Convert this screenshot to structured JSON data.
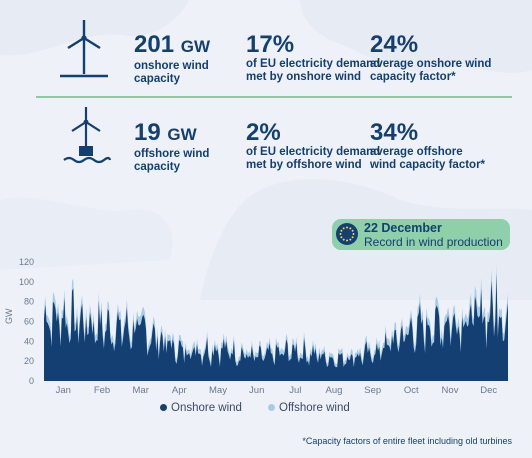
{
  "stats": {
    "onshore": [
      {
        "value": "201",
        "unit": "GW",
        "desc": [
          "onshore wind",
          "capacity"
        ]
      },
      {
        "value": "17%",
        "unit": "",
        "desc": [
          "of EU electricity demand",
          "met by onshore wind"
        ]
      },
      {
        "value": "24%",
        "unit": "",
        "desc": [
          "average onshore wind",
          "capacity factor*"
        ]
      }
    ],
    "offshore": [
      {
        "value": "19",
        "unit": "GW",
        "desc": [
          "offshore wind",
          "capacity"
        ]
      },
      {
        "value": "2%",
        "unit": "",
        "desc": [
          "of EU electricity demand",
          "met by offshore wind"
        ]
      },
      {
        "value": "34%",
        "unit": "",
        "desc": [
          "average offshore",
          "wind capacity factor*"
        ]
      }
    ]
  },
  "callout": {
    "date": "22 December",
    "text": "Record in wind production"
  },
  "footnote": "*Capacity factors of entire fleet including old turbines",
  "colors": {
    "navy": "#133f72",
    "onshore": "#133f72",
    "offshore": "#a8cbe6",
    "callout": "#8fcfa9"
  },
  "chart_data": {
    "type": "area",
    "ylabel": "GW",
    "xlabel": "",
    "ylim": [
      0,
      120
    ],
    "yticks": [
      0,
      20,
      40,
      60,
      80,
      100,
      120
    ],
    "month_labels": [
      "Jan",
      "Feb",
      "Mar",
      "Apr",
      "May",
      "Jun",
      "Jul",
      "Aug",
      "Sep",
      "Oct",
      "Nov",
      "Dec"
    ],
    "legend": [
      "Onshore wind",
      "Offshore wind"
    ],
    "legend_position": "bottom",
    "grid": false,
    "series": [
      {
        "name": "Onshore wind",
        "stacked_order": 1,
        "monthly_anchor": [
          88,
          75,
          70,
          42,
          45,
          32,
          42,
          30,
          38,
          70,
          82,
          92
        ],
        "peak": {
          "month": "Dec",
          "value": 108
        }
      },
      {
        "name": "Offshore wind",
        "stacked_order": 2,
        "monthly_anchor": [
          8,
          7,
          7,
          5,
          5,
          4,
          5,
          4,
          5,
          7,
          8,
          9
        ],
        "peak": {
          "month": "Dec",
          "value": 10
        }
      }
    ],
    "annotation": {
      "x": "22 December",
      "total": 118,
      "text": "Record in wind production"
    }
  }
}
